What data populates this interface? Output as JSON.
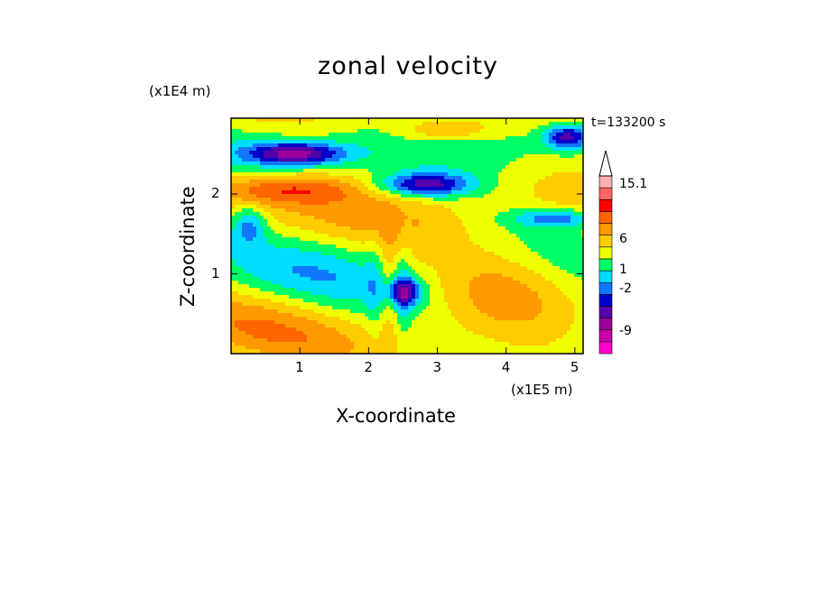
{
  "chart_data": {
    "type": "heatmap",
    "title": "zonal velocity",
    "xlabel": "X-coordinate",
    "ylabel": "Z-coordinate",
    "x_unit": "(x1E5 m)",
    "y_unit": "(x1E4 m)",
    "time_label": "t=133200 s",
    "xlim": [
      0,
      5.12
    ],
    "ylim": [
      0,
      2.95
    ],
    "x_ticks": [
      "1",
      "2",
      "3",
      "4",
      "5"
    ],
    "x_tick_values": [
      1,
      2,
      3,
      4,
      5
    ],
    "y_ticks": [
      "1",
      "2"
    ],
    "y_tick_values": [
      1,
      2
    ],
    "colorbar": {
      "colors": [
        "#ff00cc",
        "#cc00aa",
        "#990099",
        "#5500aa",
        "#0000cc",
        "#1177ff",
        "#00ddff",
        "#00ff66",
        "#eeff00",
        "#ffcc00",
        "#ff9900",
        "#ff6600",
        "#ff0000",
        "#ff6666",
        "#ffb0b0"
      ],
      "labels": [
        "15.1",
        "6",
        "1",
        "-2",
        "-9"
      ],
      "label_values": [
        15.1,
        6,
        1,
        -2,
        -9
      ],
      "extends_upward": true
    },
    "grid": false,
    "legend": "colorbar right"
  }
}
